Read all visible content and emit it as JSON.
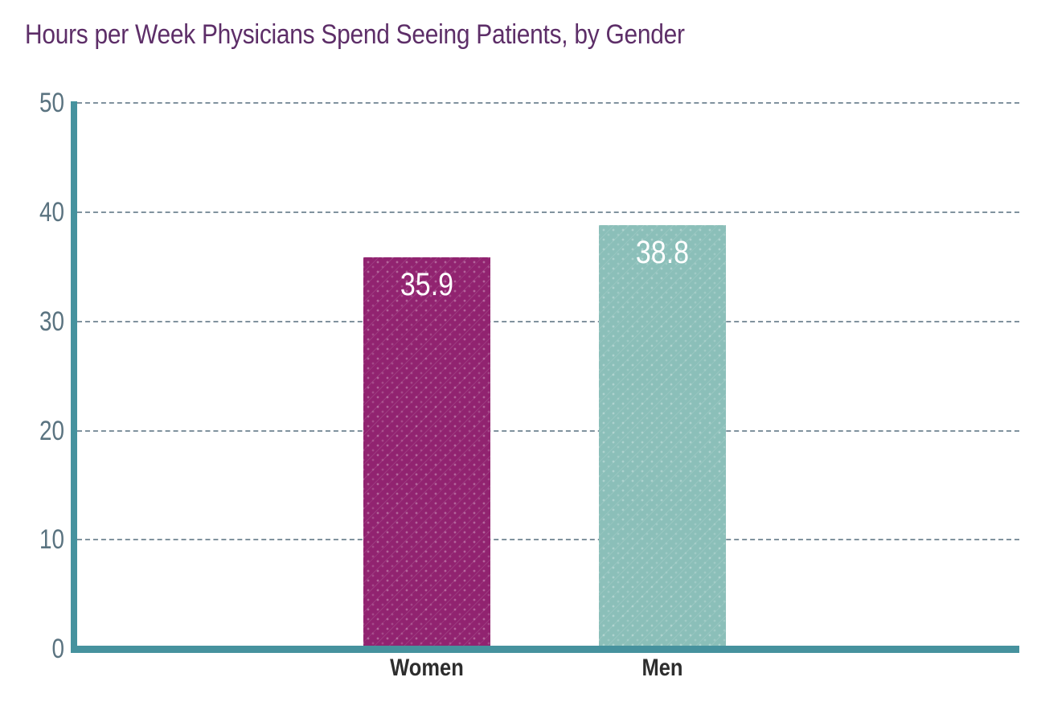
{
  "chart_data": {
    "type": "bar",
    "title": "Hours per Week Physicians Spend Seeing Patients, by Gender",
    "categories": [
      "Women",
      "Men"
    ],
    "values": [
      35.9,
      38.8
    ],
    "value_labels": [
      "35.9",
      "38.8"
    ],
    "bar_colors": [
      "#912370",
      "#8bbfb9"
    ],
    "bar_texture": "diagonal-dotted-lines",
    "xlabel": "",
    "ylabel": "",
    "ylim": [
      0,
      50
    ],
    "yticks": [
      50,
      40,
      30,
      20,
      10,
      0
    ],
    "ytick_labels": [
      "50",
      "40",
      "30",
      "20",
      "10",
      "0"
    ],
    "grid": {
      "horizontal": true,
      "style": "dashed",
      "color": "#80929e"
    },
    "legend_position": "none",
    "colors": {
      "title": "#5d2e68",
      "axis": "#46929e",
      "tick_labels": "#5a7380",
      "category_labels": "#2d2d2d",
      "value_labels": "#ffffff",
      "background": "#ffffff"
    }
  }
}
